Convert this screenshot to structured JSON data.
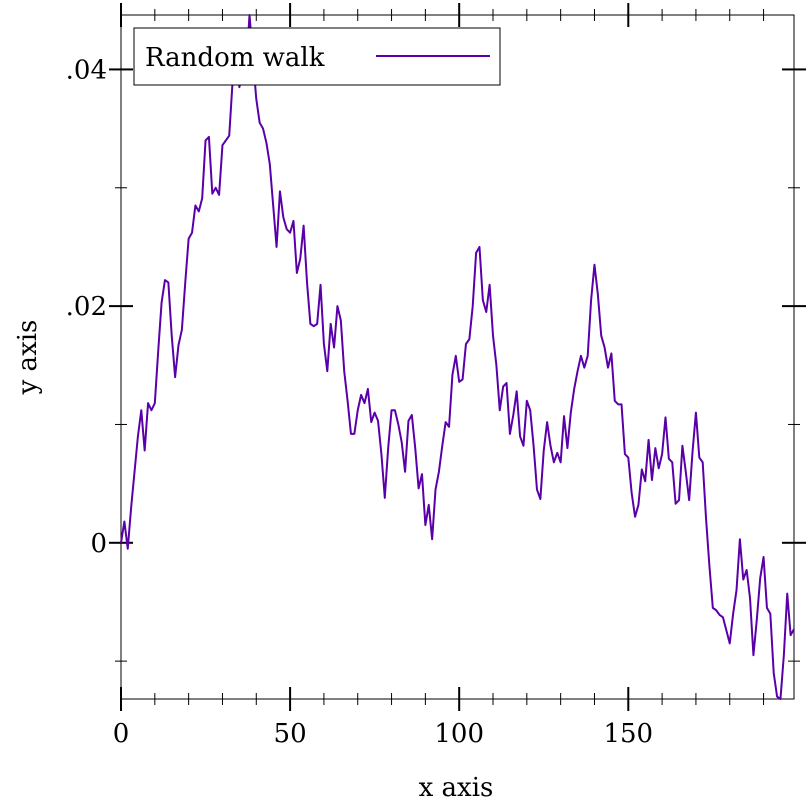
{
  "chart_data": {
    "type": "line",
    "xlabel": "x axis",
    "ylabel": "y axis",
    "xlim": [
      0,
      199
    ],
    "ylim": [
      -0.0132,
      0.0446
    ],
    "x_ticks": [
      0,
      50,
      100,
      150
    ],
    "x_tick_labels": [
      "0",
      "50",
      "100",
      "150"
    ],
    "y_ticks": [
      0,
      0.02,
      0.04
    ],
    "y_tick_labels": [
      "0",
      ".02",
      ".04"
    ],
    "grid": false,
    "legend": {
      "position": "top-left"
    },
    "series": [
      {
        "name": "Random walk",
        "color": "#5a00a8",
        "values": [
          0.0,
          0.0018,
          -0.0005,
          0.003,
          0.006,
          0.009,
          0.0112,
          0.0078,
          0.0118,
          0.0112,
          0.0118,
          0.0162,
          0.0203,
          0.0222,
          0.022,
          0.0175,
          0.014,
          0.0167,
          0.018,
          0.022,
          0.0257,
          0.0262,
          0.0285,
          0.028,
          0.0291,
          0.034,
          0.0343,
          0.0295,
          0.03,
          0.0294,
          0.0336,
          0.034,
          0.0344,
          0.039,
          0.042,
          0.0385,
          0.0398,
          0.04,
          0.0446,
          0.041,
          0.0375,
          0.0355,
          0.035,
          0.0338,
          0.032,
          0.0285,
          0.025,
          0.0297,
          0.0275,
          0.0265,
          0.0262,
          0.0272,
          0.0228,
          0.024,
          0.0268,
          0.022,
          0.0185,
          0.0183,
          0.0185,
          0.0218,
          0.0168,
          0.0145,
          0.0185,
          0.0165,
          0.02,
          0.0188,
          0.0145,
          0.012,
          0.0092,
          0.0092,
          0.0112,
          0.0125,
          0.0118,
          0.013,
          0.0102,
          0.011,
          0.0103,
          0.0075,
          0.0038,
          0.008,
          0.0112,
          0.0112,
          0.01,
          0.0085,
          0.006,
          0.0103,
          0.0108,
          0.008,
          0.0046,
          0.0058,
          0.0015,
          0.0032,
          0.0003,
          0.0045,
          0.006,
          0.0082,
          0.0102,
          0.0098,
          0.0142,
          0.0158,
          0.0136,
          0.0138,
          0.0168,
          0.0172,
          0.02,
          0.0245,
          0.025,
          0.0205,
          0.0195,
          0.0218,
          0.0175,
          0.015,
          0.0112,
          0.0132,
          0.0135,
          0.0092,
          0.0108,
          0.0128,
          0.009,
          0.0082,
          0.012,
          0.0112,
          0.0082,
          0.0045,
          0.0037,
          0.0078,
          0.0102,
          0.0082,
          0.0068,
          0.0076,
          0.0068,
          0.0107,
          0.008,
          0.011,
          0.013,
          0.0145,
          0.0158,
          0.0148,
          0.0158,
          0.0205,
          0.0235,
          0.021,
          0.0175,
          0.0165,
          0.0148,
          0.016,
          0.012,
          0.0117,
          0.0117,
          0.0075,
          0.0072,
          0.0042,
          0.0022,
          0.0032,
          0.0062,
          0.0052,
          0.0087,
          0.0053,
          0.008,
          0.0063,
          0.0075,
          0.0106,
          0.0071,
          0.0068,
          0.0033,
          0.0036,
          0.0082,
          0.006,
          0.0036,
          0.0077,
          0.011,
          0.0072,
          0.0068,
          0.002,
          -0.002,
          -0.0055,
          -0.0057,
          -0.0061,
          -0.0063,
          -0.0074,
          -0.0085,
          -0.006,
          -0.004,
          0.0003,
          -0.0031,
          -0.0023,
          -0.0047,
          -0.0095,
          -0.0065,
          -0.003,
          -0.0012,
          -0.0055,
          -0.006,
          -0.011,
          -0.013,
          -0.0132,
          -0.0095,
          -0.0043,
          -0.0078,
          -0.0073
        ]
      }
    ]
  }
}
